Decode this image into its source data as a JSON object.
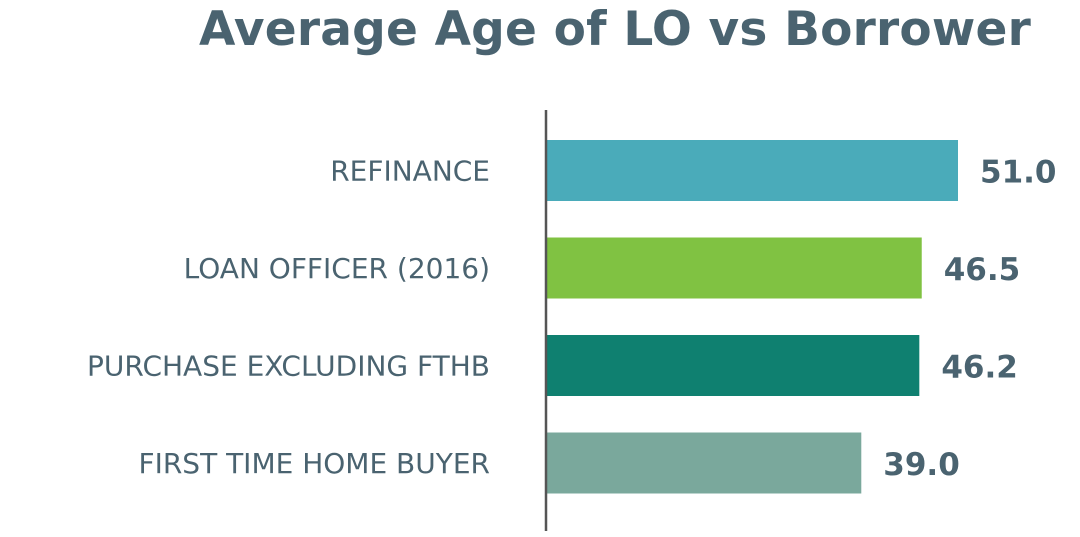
{
  "chart_data": {
    "type": "bar",
    "orientation": "horizontal",
    "title": "Average Age of LO vs Borrower",
    "xlabel": "",
    "ylabel": "",
    "xlim": [
      0,
      51.0
    ],
    "grid": false,
    "categories": [
      "REFINANCE",
      "LOAN OFFICER (2016)",
      "PURCHASE EXCLUDING FTHB",
      "FIRST TIME HOME BUYER"
    ],
    "values": [
      51.0,
      46.5,
      46.2,
      39.0
    ],
    "value_labels": [
      "51.0",
      "46.5",
      "46.2",
      "39.0"
    ],
    "colors": [
      "#4aabba",
      "#80c242",
      "#0f8070",
      "#7aa89c"
    ]
  }
}
